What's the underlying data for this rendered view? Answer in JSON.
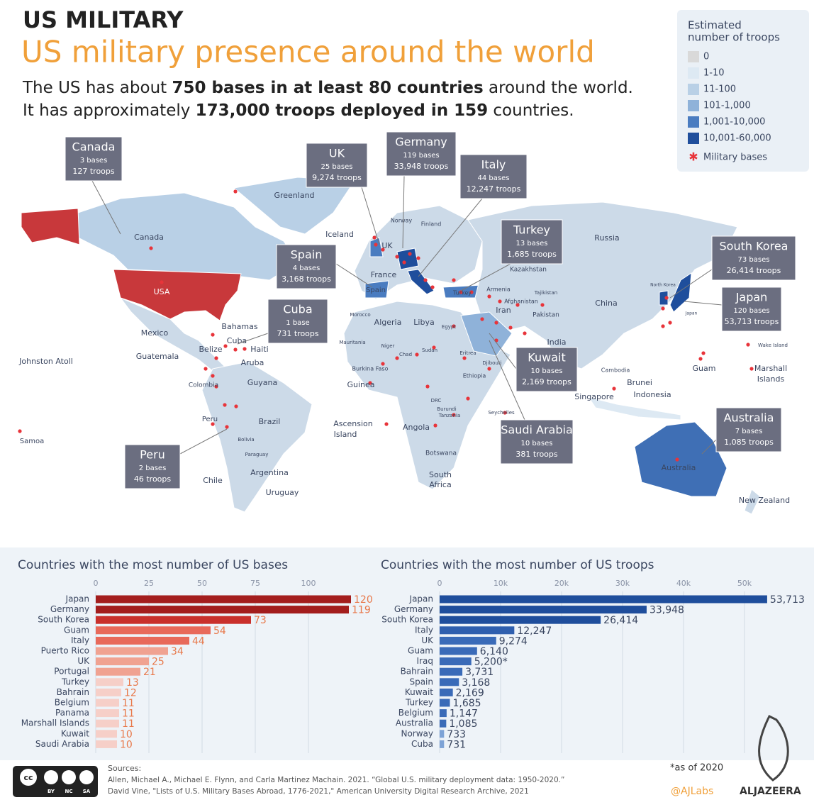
{
  "header": {
    "kicker": "US MILITARY",
    "title": "US military presence around the world",
    "intro": [
      [
        "The US has about ",
        "750 bases in at least 80 countries",
        " around the world."
      ],
      [
        "It has approximately ",
        "173,000 troops deployed in 159",
        " countries."
      ]
    ]
  },
  "legend": {
    "title": [
      "Estimated",
      "number of troops"
    ],
    "items": [
      {
        "label": "0",
        "color": "#d9d9d9"
      },
      {
        "label": "1-10",
        "color": "#dde9f3"
      },
      {
        "label": "11-100",
        "color": "#b9d0e6"
      },
      {
        "label": "101-1,000",
        "color": "#8fb2d9"
      },
      {
        "label": "1,001-10,000",
        "color": "#4a7cc0"
      },
      {
        "label": "10,001-60,000",
        "color": "#1f4e9c"
      }
    ],
    "bases": {
      "label": "Military bases",
      "color": "#e8343a"
    }
  },
  "callouts": [
    {
      "name": "Canada",
      "bases": "3 bases",
      "troops": "127 troops"
    },
    {
      "name": "UK",
      "bases": "25 bases",
      "troops": "9,274 troops"
    },
    {
      "name": "Germany",
      "bases": "119 bases",
      "troops": "33,948 troops"
    },
    {
      "name": "Italy",
      "bases": "44 bases",
      "troops": "12,247 troops"
    },
    {
      "name": "Turkey",
      "bases": "13 bases",
      "troops": "1,685 troops"
    },
    {
      "name": "Spain",
      "bases": "4 bases",
      "troops": "3,168 troops"
    },
    {
      "name": "Cuba",
      "bases": "1 base",
      "troops": "731 troops"
    },
    {
      "name": "South Korea",
      "bases": "73 bases",
      "troops": "26,414 troops"
    },
    {
      "name": "Japan",
      "bases": "120 bases",
      "troops": "53,713 troops"
    },
    {
      "name": "Kuwait",
      "bases": "10 bases",
      "troops": "2,169 troops"
    },
    {
      "name": "Saudi Arabia",
      "bases": "10 bases",
      "troops": "381 troops"
    },
    {
      "name": "Australia",
      "bases": "7 bases",
      "troops": "1,085 troops"
    },
    {
      "name": "Peru",
      "bases": "2 bases",
      "troops": "46 troops"
    }
  ],
  "map_labels": [
    "Greenland",
    "Canada",
    "USA",
    "Mexico",
    "Bahamas",
    "Cuba",
    "Haiti",
    "Belize",
    "Guatemala",
    "Aruba",
    "Johnston Atoll",
    "Colombia",
    "Guyana",
    "Peru",
    "Brazil",
    "Samoa",
    "Chile",
    "Argentina",
    "Uruguay",
    "Bolivia",
    "Paraguay",
    "Iceland",
    "UK",
    "France",
    "Spain",
    "Norway",
    "Finland",
    "Russia",
    "Kazakhstan",
    "Turkey",
    "Armenia",
    "Iran",
    "Afghanistan",
    "Pakistan",
    "Tajikistan",
    "China",
    "India",
    "Morocco",
    "Algeria",
    "Libya",
    "Egypt",
    "Mauritania",
    "Niger",
    "Chad",
    "Sudan",
    "Eritrea",
    "Djibouti",
    "Burkina Faso",
    "Ethiopia",
    "Guinea",
    "DRC",
    "Burundi",
    "Tanzania",
    "Seychelles",
    "Ascension",
    "Island",
    "Angola",
    "Botswana",
    "South",
    "Africa",
    "Cambodia",
    "Singapore",
    "Brunei",
    "Indonesia",
    "Guam",
    "Marshall",
    "Islands",
    "Wake Island",
    "Australia",
    "New Zealand",
    "North Korea",
    "Japan"
  ],
  "chart_data": [
    {
      "type": "bar",
      "orientation": "horizontal",
      "title": "Countries with the most number of US bases",
      "categories": [
        "Japan",
        "Germany",
        "South Korea",
        "Guam",
        "Italy",
        "Puerto Rico",
        "UK",
        "Portugal",
        "Turkey",
        "Bahrain",
        "Belgium",
        "Panama",
        "Marshall Islands",
        "Kuwait",
        "Saudi Arabia"
      ],
      "values": [
        120,
        119,
        73,
        54,
        44,
        34,
        25,
        21,
        13,
        12,
        11,
        11,
        11,
        10,
        10
      ],
      "colors": [
        "#a31d1d",
        "#a31d1d",
        "#c9302c",
        "#e8695a",
        "#e8695a",
        "#f0a291",
        "#f0a291",
        "#f0a291",
        "#f6cfc8",
        "#f6cfc8",
        "#f6cfc8",
        "#f6cfc8",
        "#f6cfc8",
        "#f6cfc8",
        "#f6cfc8"
      ],
      "label_color": "#e8784a",
      "xlim": [
        0,
        120
      ],
      "xticks": [
        0,
        25,
        50,
        75,
        100
      ],
      "grid": true
    },
    {
      "type": "bar",
      "orientation": "horizontal",
      "title": "Countries with the most number of US troops",
      "categories": [
        "Japan",
        "Germany",
        "South Korea",
        "Italy",
        "UK",
        "Guam",
        "Iraq",
        "Bahrain",
        "Spain",
        "Kuwait",
        "Turkey",
        "Belgium",
        "Australia",
        "Norway",
        "Cuba"
      ],
      "values": [
        53713,
        33948,
        26414,
        12247,
        9274,
        6140,
        5200,
        3731,
        3168,
        2169,
        1685,
        1147,
        1085,
        733,
        731
      ],
      "value_labels": [
        "53,713",
        "33,948",
        "26,414",
        "12,247",
        "9,274",
        "6,140",
        "5,200*",
        "3,731",
        "3,168",
        "2,169",
        "1,685",
        "1,147",
        "1,085",
        "733",
        "731"
      ],
      "colors": [
        "#1f4e9c",
        "#1f4e9c",
        "#1f4e9c",
        "#2f5fae",
        "#3a6bb8",
        "#3a6bb8",
        "#3a6bb8",
        "#3a6bb8",
        "#3a6bb8",
        "#3a6bb8",
        "#3a6bb8",
        "#3a6bb8",
        "#3a6bb8",
        "#7ea3d6",
        "#7ea3d6"
      ],
      "label_color": "#3a4660",
      "xlim": [
        0,
        60000
      ],
      "xticks": [
        0,
        {
          "value": 10000,
          "label": "10k"
        },
        {
          "value": 20000,
          "label": "20k"
        },
        {
          "value": 30000,
          "label": "30k"
        },
        {
          "value": 40000,
          "label": "40k"
        },
        {
          "value": 50000,
          "label": "50k"
        }
      ],
      "grid": true
    }
  ],
  "footer": {
    "license": [
      "BY",
      "NC",
      "SA"
    ],
    "sources_title": "Sources:",
    "sources": [
      "Allen, Michael A., Michael E. Flynn, and Carla Martinez Machain. 2021. “Global U.S. military deployment data: 1950-2020.”",
      "David Vine, \"Lists of U.S. Military Bases Abroad, 1776-2021,\" American University Digital Research Archive, 2021"
    ],
    "note": "*as of 2020",
    "handle": "@AJLabs",
    "brand": "ALJAZEERA"
  }
}
